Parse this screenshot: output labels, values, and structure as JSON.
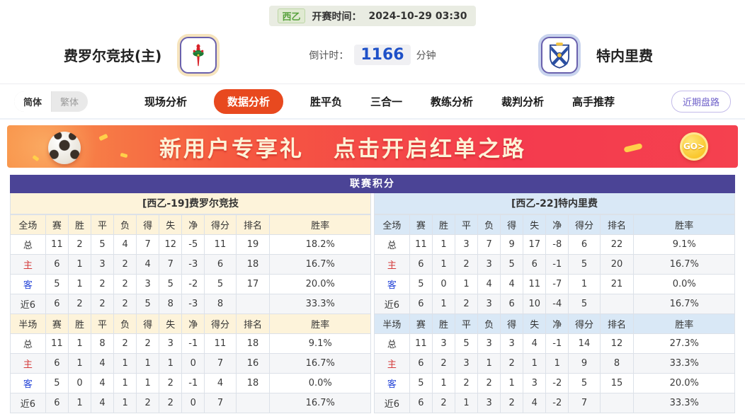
{
  "header": {
    "league": "西乙",
    "kickoff_label": "开赛时间：",
    "kickoff_time": "2024-10-29 03:30",
    "home_team": "费罗尔竞技(主)",
    "away_team": "特内里费",
    "countdown_label": "倒计时：",
    "countdown_value": "1166",
    "countdown_unit": "分钟"
  },
  "nav": {
    "lang_simplified": "简体",
    "lang_traditional": "繁体",
    "tabs": [
      {
        "label": "现场分析",
        "active": false
      },
      {
        "label": "数据分析",
        "active": true
      },
      {
        "label": "胜平负",
        "active": false
      },
      {
        "label": "三合一",
        "active": false
      },
      {
        "label": "教练分析",
        "active": false
      },
      {
        "label": "裁判分析",
        "active": false
      },
      {
        "label": "高手推荐",
        "active": false
      }
    ],
    "recent_odds_label": "近期盘路"
  },
  "banner": {
    "headline_1": "新用户专享礼",
    "headline_2": "点击开启红单之路",
    "go_label": "GO>"
  },
  "colors": {
    "accent_orange": "#e8491f",
    "title_indigo": "#4b4496",
    "home_theme_cream": "#fdf3da",
    "away_theme_blue": "#d9e8f6",
    "home_row_red": "#d43a3a",
    "away_row_blue": "#2847d8",
    "countdown_blue": "#1f51c8",
    "league_green": "#57a13c"
  },
  "standings": {
    "title": "联赛积分",
    "tables": {
      "left": {
        "header": "[西乙-19]费罗尔竞技",
        "theme": "cream",
        "sections": [
          {
            "columns": [
              "全场",
              "赛",
              "胜",
              "平",
              "负",
              "得",
              "失",
              "净",
              "得分",
              "排名",
              "胜率"
            ],
            "rows": [
              {
                "label": "总",
                "type": "total-row",
                "cells": [
                  "11",
                  "2",
                  "5",
                  "4",
                  "7",
                  "12",
                  "-5",
                  "11",
                  "19",
                  "18.2%"
                ]
              },
              {
                "label": "主",
                "type": "home-row",
                "cells": [
                  "6",
                  "1",
                  "3",
                  "2",
                  "4",
                  "7",
                  "-3",
                  "6",
                  "18",
                  "16.7%"
                ]
              },
              {
                "label": "客",
                "type": "away-row",
                "cells": [
                  "5",
                  "1",
                  "2",
                  "2",
                  "3",
                  "5",
                  "-2",
                  "5",
                  "17",
                  "20.0%"
                ]
              },
              {
                "label": "近6",
                "type": "recent-row",
                "cells": [
                  "6",
                  "2",
                  "2",
                  "2",
                  "5",
                  "8",
                  "-3",
                  "8",
                  "",
                  "33.3%"
                ]
              }
            ]
          },
          {
            "columns": [
              "半场",
              "赛",
              "胜",
              "平",
              "负",
              "得",
              "失",
              "净",
              "得分",
              "排名",
              "胜率"
            ],
            "rows": [
              {
                "label": "总",
                "type": "total-row",
                "cells": [
                  "11",
                  "1",
                  "8",
                  "2",
                  "2",
                  "3",
                  "-1",
                  "11",
                  "18",
                  "9.1%"
                ]
              },
              {
                "label": "主",
                "type": "home-row",
                "cells": [
                  "6",
                  "1",
                  "4",
                  "1",
                  "1",
                  "1",
                  "0",
                  "7",
                  "16",
                  "16.7%"
                ]
              },
              {
                "label": "客",
                "type": "away-row",
                "cells": [
                  "5",
                  "0",
                  "4",
                  "1",
                  "1",
                  "2",
                  "-1",
                  "4",
                  "18",
                  "0.0%"
                ]
              },
              {
                "label": "近6",
                "type": "recent-row",
                "cells": [
                  "6",
                  "1",
                  "4",
                  "1",
                  "2",
                  "2",
                  "0",
                  "7",
                  "",
                  "16.7%"
                ]
              }
            ]
          }
        ]
      },
      "right": {
        "header": "[西乙-22]特内里费",
        "theme": "blue",
        "sections": [
          {
            "columns": [
              "全场",
              "赛",
              "胜",
              "平",
              "负",
              "得",
              "失",
              "净",
              "得分",
              "排名",
              "胜率"
            ],
            "rows": [
              {
                "label": "总",
                "type": "total-row",
                "cells": [
                  "11",
                  "1",
                  "3",
                  "7",
                  "9",
                  "17",
                  "-8",
                  "6",
                  "22",
                  "9.1%"
                ]
              },
              {
                "label": "主",
                "type": "home-row",
                "cells": [
                  "6",
                  "1",
                  "2",
                  "3",
                  "5",
                  "6",
                  "-1",
                  "5",
                  "20",
                  "16.7%"
                ]
              },
              {
                "label": "客",
                "type": "away-row",
                "cells": [
                  "5",
                  "0",
                  "1",
                  "4",
                  "4",
                  "11",
                  "-7",
                  "1",
                  "21",
                  "0.0%"
                ]
              },
              {
                "label": "近6",
                "type": "recent-row",
                "cells": [
                  "6",
                  "1",
                  "2",
                  "3",
                  "6",
                  "10",
                  "-4",
                  "5",
                  "",
                  "16.7%"
                ]
              }
            ]
          },
          {
            "columns": [
              "半场",
              "赛",
              "胜",
              "平",
              "负",
              "得",
              "失",
              "净",
              "得分",
              "排名",
              "胜率"
            ],
            "rows": [
              {
                "label": "总",
                "type": "total-row",
                "cells": [
                  "11",
                  "3",
                  "5",
                  "3",
                  "3",
                  "4",
                  "-1",
                  "14",
                  "12",
                  "27.3%"
                ]
              },
              {
                "label": "主",
                "type": "home-row",
                "cells": [
                  "6",
                  "2",
                  "3",
                  "1",
                  "2",
                  "1",
                  "1",
                  "9",
                  "8",
                  "33.3%"
                ]
              },
              {
                "label": "客",
                "type": "away-row",
                "cells": [
                  "5",
                  "1",
                  "2",
                  "2",
                  "1",
                  "3",
                  "-2",
                  "5",
                  "15",
                  "20.0%"
                ]
              },
              {
                "label": "近6",
                "type": "recent-row",
                "cells": [
                  "6",
                  "2",
                  "1",
                  "3",
                  "2",
                  "4",
                  "-2",
                  "7",
                  "",
                  "33.3%"
                ]
              }
            ]
          }
        ]
      }
    }
  }
}
